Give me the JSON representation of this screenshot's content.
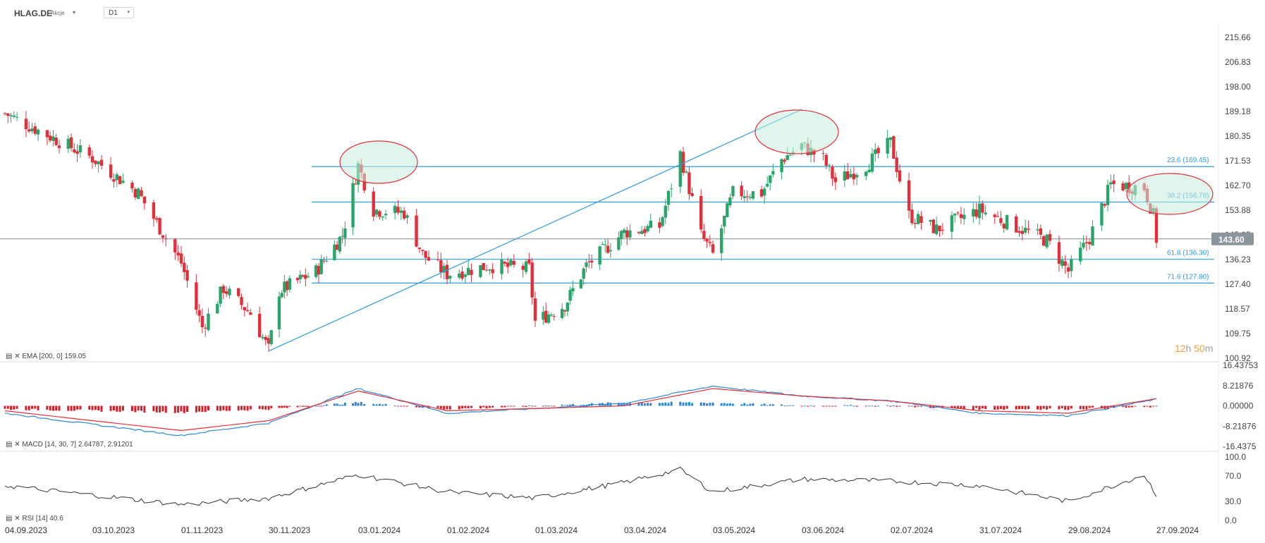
{
  "header": {
    "ticker": "HLAG.DE",
    "asset_type": "Akcje",
    "caret": "▾",
    "interval": "D1"
  },
  "timer": {
    "hours": "12",
    "h": "h",
    "minutes": "50",
    "m": "m"
  },
  "colors": {
    "up": "#2aa56a",
    "down": "#e2303b",
    "fib": "#2f9be0",
    "macd_hist_up": "#2a86d4",
    "macd_hist_down": "#d4202a",
    "macd_line": "#2f86d8",
    "signal_line": "#e2303b",
    "rsi_line": "#333333",
    "price_line": "#7f8a94",
    "ellipse_stroke": "#e2303b",
    "ellipse_fill": "#c6ecdc"
  },
  "price_axis": {
    "ticks": [
      "215.66",
      "206.83",
      "198.00",
      "189.18",
      "180.35",
      "171.53",
      "162.70",
      "153.88",
      "145.05",
      "136.23",
      "127.40",
      "118.57",
      "109.75",
      "100.92"
    ],
    "current_price": "143.60"
  },
  "macd_axis": {
    "ticks": [
      "16.43753",
      "8.21876",
      "0.00000",
      "-8.21876",
      "-16.4375"
    ]
  },
  "rsi_axis": {
    "ticks": [
      "100.0",
      "70.0",
      "30.0",
      "0.0"
    ]
  },
  "date_axis": {
    "labels": [
      "04.09.2023",
      "03.10.2023",
      "01.11.2023",
      "30.11.2023",
      "03.01.2024",
      "01.02.2024",
      "01.03.2024",
      "03.04.2024",
      "03.05.2024",
      "03.06.2024",
      "02.07.2024",
      "31.07.2024",
      "29.08.2024",
      "27.09.2024"
    ]
  },
  "indicators": {
    "ema": "EMA [200, 0] 159.05",
    "macd": "MACD [14, 30, 7] 2.64787, 2.91201",
    "rsi": "RSI [14] 40.6"
  },
  "fib_levels": [
    {
      "label": "23.6 (169.45)",
      "price": 169.45
    },
    {
      "label": "38.2 (156.78)",
      "price": 156.78
    },
    {
      "label": "61.8 (136.30)",
      "price": 136.3
    },
    {
      "label": "71.6 (127.80)",
      "price": 127.8
    }
  ],
  "chart_data": {
    "type": "candlestick",
    "symbol": "HLAG.DE",
    "interval": "D1",
    "price_range": [
      100.92,
      215.66
    ],
    "last_price": 143.6,
    "ema_200": 159.05,
    "trendline": {
      "from": {
        "date": "30.11.2023",
        "price": 103.5
      },
      "to": {
        "date": "03.06.2024",
        "price": 189.9
      }
    },
    "anchors": [
      {
        "date": "04.09.2023",
        "price": 188.5
      },
      {
        "date": "03.10.2023",
        "price": 172.5
      },
      {
        "date": "18.10.2023",
        "price": 160
      },
      {
        "date": "01.11.2023",
        "price": 135
      },
      {
        "date": "08.11.2023",
        "price": 112
      },
      {
        "date": "15.11.2023",
        "price": 126
      },
      {
        "date": "24.11.2023",
        "price": 117
      },
      {
        "date": "30.11.2023",
        "price": 104
      },
      {
        "date": "04.12.2023",
        "price": 125
      },
      {
        "date": "18.12.2023",
        "price": 132
      },
      {
        "date": "28.12.2023",
        "price": 145
      },
      {
        "date": "03.01.2024",
        "price": 170
      },
      {
        "date": "08.01.2024",
        "price": 154
      },
      {
        "date": "18.01.2024",
        "price": 153
      },
      {
        "date": "24.01.2024",
        "price": 138
      },
      {
        "date": "01.02.2024",
        "price": 131
      },
      {
        "date": "15.02.2024",
        "price": 134
      },
      {
        "date": "28.02.2024",
        "price": 133
      },
      {
        "date": "01.03.2024",
        "price": 114
      },
      {
        "date": "12.03.2024",
        "price": 120
      },
      {
        "date": "20.03.2024",
        "price": 134
      },
      {
        "date": "03.04.2024",
        "price": 146
      },
      {
        "date": "15.04.2024",
        "price": 148
      },
      {
        "date": "22.04.2024",
        "price": 174
      },
      {
        "date": "29.04.2024",
        "price": 145
      },
      {
        "date": "03.05.2024",
        "price": 138
      },
      {
        "date": "10.05.2024",
        "price": 160
      },
      {
        "date": "20.05.2024",
        "price": 160
      },
      {
        "date": "27.05.2024",
        "price": 172
      },
      {
        "date": "03.06.2024",
        "price": 177
      },
      {
        "date": "10.06.2024",
        "price": 172
      },
      {
        "date": "14.06.2024",
        "price": 164
      },
      {
        "date": "24.06.2024",
        "price": 170
      },
      {
        "date": "02.07.2024",
        "price": 178
      },
      {
        "date": "08.07.2024",
        "price": 152
      },
      {
        "date": "17.07.2024",
        "price": 147
      },
      {
        "date": "31.07.2024",
        "price": 154
      },
      {
        "date": "12.08.2024",
        "price": 148
      },
      {
        "date": "22.08.2024",
        "price": 143
      },
      {
        "date": "29.08.2024",
        "price": 132
      },
      {
        "date": "05.09.2024",
        "price": 144
      },
      {
        "date": "12.09.2024",
        "price": 163
      },
      {
        "date": "23.09.2024",
        "price": 162
      },
      {
        "date": "26.09.2024",
        "price": 152
      },
      {
        "date": "27.09.2024",
        "price": 143.6
      }
    ],
    "macd": [
      {
        "date": "04.09.2023",
        "macd": -3,
        "signal": -2
      },
      {
        "date": "01.11.2023",
        "macd": -12,
        "signal": -10
      },
      {
        "date": "30.11.2023",
        "macd": -7,
        "signal": -6
      },
      {
        "date": "03.01.2024",
        "macd": 7,
        "signal": 6
      },
      {
        "date": "01.02.2024",
        "macd": -3,
        "signal": -2
      },
      {
        "date": "03.04.2024",
        "macd": 1,
        "signal": 0
      },
      {
        "date": "03.05.2024",
        "macd": 8,
        "signal": 7
      },
      {
        "date": "03.06.2024",
        "macd": 4,
        "signal": 4
      },
      {
        "date": "02.07.2024",
        "macd": 2,
        "signal": 2
      },
      {
        "date": "31.07.2024",
        "macd": -3,
        "signal": -2
      },
      {
        "date": "29.08.2024",
        "macd": -4,
        "signal": -3
      },
      {
        "date": "27.09.2024",
        "macd": 2.64787,
        "signal": 2.91201
      }
    ],
    "rsi": [
      {
        "date": "04.09.2023",
        "value": 55
      },
      {
        "date": "01.11.2023",
        "value": 25
      },
      {
        "date": "30.11.2023",
        "value": 35
      },
      {
        "date": "03.01.2024",
        "value": 72
      },
      {
        "date": "01.02.2024",
        "value": 45
      },
      {
        "date": "01.03.2024",
        "value": 35
      },
      {
        "date": "03.04.2024",
        "value": 60
      },
      {
        "date": "22.04.2024",
        "value": 80
      },
      {
        "date": "03.05.2024",
        "value": 45
      },
      {
        "date": "03.06.2024",
        "value": 65
      },
      {
        "date": "02.07.2024",
        "value": 62
      },
      {
        "date": "31.07.2024",
        "value": 55
      },
      {
        "date": "29.08.2024",
        "value": 30
      },
      {
        "date": "23.09.2024",
        "value": 72
      },
      {
        "date": "27.09.2024",
        "value": 40.6
      }
    ]
  }
}
